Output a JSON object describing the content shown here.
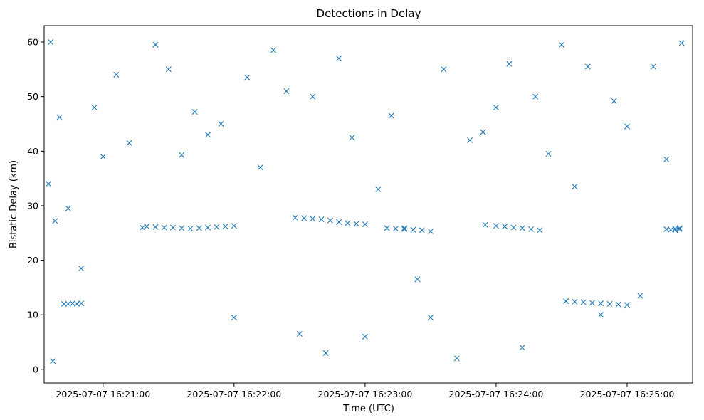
{
  "chart_data": {
    "type": "scatter",
    "title": "Detections in Delay",
    "xlabel": "Time (UTC)",
    "ylabel": "Bistatic Delay (km)",
    "x_tick_labels": [
      "2025-07-07 16:21:00",
      "2025-07-07 16:22:00",
      "2025-07-07 16:23:00",
      "2025-07-07 16:24:00",
      "2025-07-07 16:25:00"
    ],
    "y_ticks": [
      0,
      10,
      20,
      30,
      40,
      50,
      60
    ],
    "xlim": [
      "2025-07-07 16:20:33",
      "2025-07-07 16:25:30"
    ],
    "ylim": [
      -2.5,
      63
    ],
    "grid": false,
    "marker": "x",
    "color": "#1f77b4",
    "series": [
      {
        "x": [
          "16:20:35",
          "16:20:36",
          "16:20:37",
          "16:20:38",
          "16:20:40",
          "16:20:44",
          "16:20:50",
          "16:20:56",
          "16:21:00",
          "16:21:06",
          "16:21:12",
          "16:21:18",
          "16:21:24",
          "16:21:30",
          "16:21:36",
          "16:21:42",
          "16:21:48",
          "16:21:54",
          "16:22:00",
          "16:22:06",
          "16:22:12",
          "16:22:18",
          "16:22:24",
          "16:22:30",
          "16:22:36",
          "16:22:42",
          "16:22:48",
          "16:22:54",
          "16:23:00",
          "16:23:06",
          "16:23:12",
          "16:23:18",
          "16:23:24",
          "16:23:30",
          "16:23:36",
          "16:23:42",
          "16:23:48",
          "16:23:54",
          "16:24:00",
          "16:24:06",
          "16:24:12",
          "16:24:18",
          "16:24:24",
          "16:24:30",
          "16:24:36",
          "16:24:42",
          "16:24:48",
          "16:24:54",
          "16:25:00",
          "16:25:06",
          "16:25:12",
          "16:25:18",
          "16:25:22",
          "16:25:24",
          "16:25:25",
          "16:20:42",
          "16:20:44",
          "16:20:46",
          "16:20:48",
          "16:20:50",
          "16:21:20",
          "16:21:24",
          "16:21:28",
          "16:21:32",
          "16:21:36",
          "16:21:40",
          "16:21:44",
          "16:21:48",
          "16:21:52",
          "16:21:56",
          "16:22:00",
          "16:22:28",
          "16:22:32",
          "16:22:36",
          "16:22:40",
          "16:22:44",
          "16:22:48",
          "16:22:52",
          "16:22:56",
          "16:23:00",
          "16:23:10",
          "16:23:14",
          "16:23:18",
          "16:23:22",
          "16:23:26",
          "16:23:30",
          "16:23:55",
          "16:24:00",
          "16:24:04",
          "16:24:08",
          "16:24:12",
          "16:24:16",
          "16:24:20",
          "16:24:32",
          "16:24:36",
          "16:24:40",
          "16:24:44",
          "16:24:48",
          "16:24:52",
          "16:24:56",
          "16:25:00",
          "16:25:18",
          "16:25:20",
          "16:25:22",
          "16:25:24"
        ],
        "y": [
          34.0,
          60.0,
          1.5,
          27.2,
          46.2,
          29.5,
          18.5,
          48.0,
          39.0,
          54.0,
          41.5,
          26.0,
          59.5,
          55.0,
          39.3,
          47.2,
          43.0,
          45.0,
          9.5,
          53.5,
          37.0,
          58.5,
          51.0,
          6.5,
          50.0,
          3.0,
          57.0,
          42.5,
          6.0,
          33.0,
          46.5,
          25.9,
          16.5,
          9.5,
          55.0,
          2.0,
          42.0,
          43.5,
          48.0,
          56.0,
          4.0,
          50.0,
          39.5,
          59.5,
          33.5,
          55.5,
          10.0,
          49.2,
          44.5,
          13.5,
          55.5,
          38.5,
          25.5,
          25.7,
          59.8,
          12.0,
          12.0,
          12.1,
          12.0,
          12.1,
          26.2,
          26.1,
          26.0,
          26.0,
          25.9,
          25.8,
          25.9,
          26.0,
          26.1,
          26.2,
          26.3,
          27.8,
          27.7,
          27.6,
          27.5,
          27.3,
          27.0,
          26.8,
          26.7,
          26.6,
          25.9,
          25.8,
          25.7,
          25.6,
          25.5,
          25.3,
          26.5,
          26.3,
          26.2,
          26.0,
          25.9,
          25.7,
          25.5,
          12.5,
          12.4,
          12.3,
          12.2,
          12.1,
          12.0,
          11.9,
          11.8,
          25.7,
          25.6,
          25.8,
          25.9
        ]
      }
    ]
  }
}
